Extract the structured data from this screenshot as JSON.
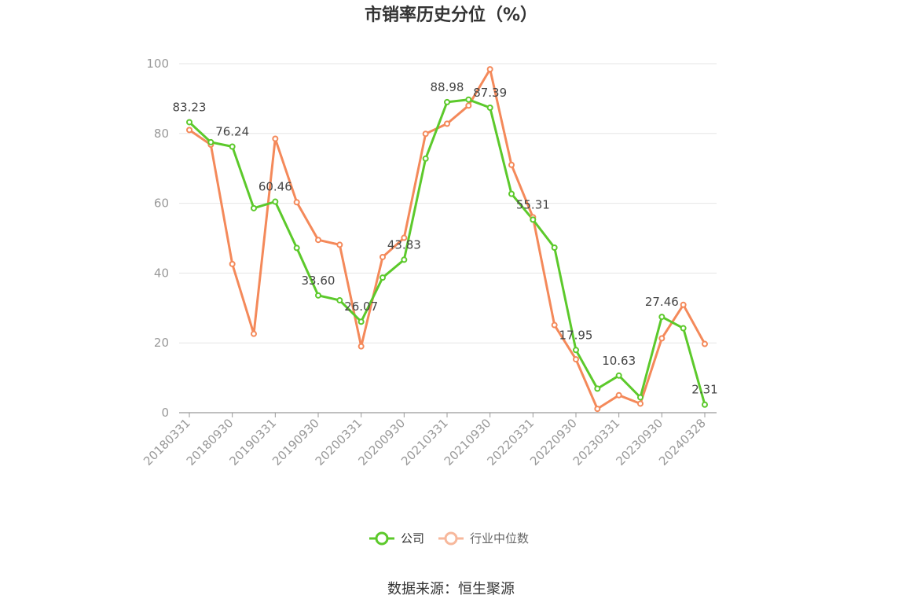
{
  "source_text": "数据来源：恒生聚源",
  "colors": {
    "company": "#5cc92b",
    "industry": "#f4895a",
    "industry_legend": "#f7b89c",
    "grid": "#e6e6e6",
    "axis": "#999999"
  },
  "chart_data": {
    "type": "line",
    "title": "市销率历史分位（%）",
    "xlabel": "",
    "ylabel": "",
    "ylim": [
      0,
      100
    ],
    "yticks": [
      0,
      20,
      40,
      60,
      80,
      100
    ],
    "grid": true,
    "legend_position": "bottom",
    "x": [
      "20180331",
      "20180630",
      "20180930",
      "20181231",
      "20190331",
      "20190630",
      "20190930",
      "20191231",
      "20200331",
      "20200630",
      "20200930",
      "20201231",
      "20210331",
      "20210630",
      "20210930",
      "20211231",
      "20220331",
      "20220630",
      "20220930",
      "20221231",
      "20230331",
      "20230630",
      "20230930",
      "20231231",
      "20240328"
    ],
    "x_tick_labels": [
      "20180331",
      "20180930",
      "20190331",
      "20190930",
      "20200331",
      "20200930",
      "20210331",
      "20210930",
      "20220331",
      "20220930",
      "20230331",
      "20230930",
      "20240328"
    ],
    "series": [
      {
        "name": "公司",
        "values": [
          83.23,
          77.5,
          76.24,
          58.6,
          60.46,
          47.2,
          33.6,
          32.2,
          26.07,
          38.7,
          43.83,
          72.8,
          88.98,
          89.7,
          87.39,
          62.7,
          55.31,
          47.3,
          17.95,
          6.9,
          10.63,
          4.4,
          27.46,
          24.2,
          2.31
        ],
        "labels": [
          "83.23",
          "",
          "76.24",
          "",
          "60.46",
          "",
          "33.60",
          "",
          "26.07",
          "",
          "43.83",
          "",
          "88.98",
          "",
          "87.39",
          "",
          "55.31",
          "",
          "17.95",
          "",
          "10.63",
          "",
          "27.46",
          "",
          "2.31"
        ]
      },
      {
        "name": "行业中位数",
        "values": [
          81.0,
          76.8,
          42.6,
          22.6,
          78.5,
          60.3,
          49.5,
          48.1,
          19.0,
          44.6,
          50.1,
          79.9,
          82.8,
          88.0,
          98.4,
          71.0,
          56.0,
          25.1,
          15.3,
          1.1,
          5.0,
          2.6,
          21.3,
          30.9,
          19.7
        ]
      }
    ]
  }
}
